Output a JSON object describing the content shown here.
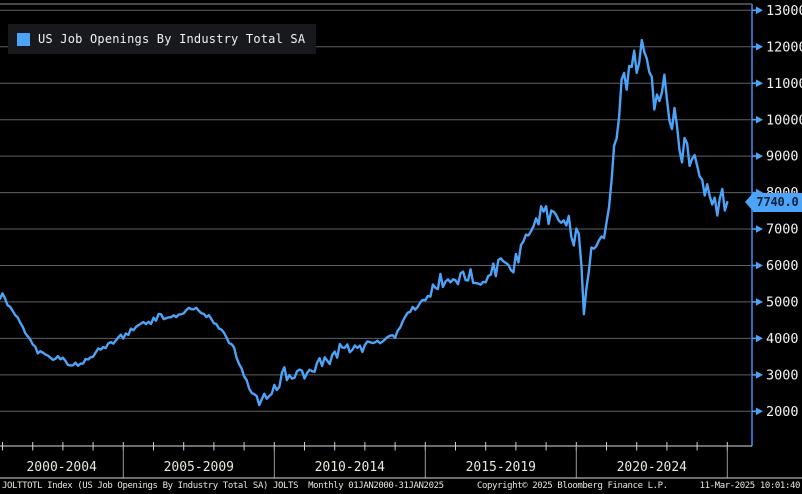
{
  "window": {
    "background": "#000000",
    "accent_blue": "#4da3f7",
    "axis_blue": "#2d6cc0",
    "grid_color": "#5d6166"
  },
  "legend": {
    "label": "US Job Openings By Industry Total SA",
    "swatch_color": "#4da3f7"
  },
  "last_value": {
    "text": "7740.0",
    "value": 7740.0,
    "bg": "#4da3f7",
    "text_color": "#0b1f38"
  },
  "y_axis": {
    "labels": [
      "13000",
      "12000",
      "11000",
      "10000",
      "9000",
      "8000",
      "7000",
      "6000",
      "5000",
      "4000",
      "3000",
      "2000"
    ],
    "tick_values": [
      13000,
      12000,
      11000,
      10000,
      9000,
      8000,
      7000,
      6000,
      5000,
      4000,
      3000,
      2000
    ],
    "label_color": "#f2f2f2"
  },
  "x_axis": {
    "sections": [
      "2000-2004",
      "2005-2009",
      "2010-2014",
      "2015-2019",
      "2020-2024"
    ],
    "divider_years": [
      2005,
      2010,
      2015,
      2020,
      2025
    ],
    "minor_tick_years_start": 2001,
    "minor_tick_years_end": 2025,
    "label_color": "#e8e8dc"
  },
  "footer": {
    "left": "JOLTTOTL Index (US Job Openings By Industry Total SA) JOLTS  Monthly 01JAN2000-31JAN2025",
    "center": "Copyright© 2025 Bloomberg Finance L.P.",
    "right": "11-Mar-2025 10:01:40"
  },
  "chart_data": {
    "type": "line",
    "title": "US Job Openings By Industry Total SA",
    "ticker": "JOLTTOTL Index",
    "frequency": "monthly",
    "x_start": "2000-12",
    "x_end": "2025-01",
    "ylim": [
      1100,
      13150
    ],
    "y_ticks": [
      2000,
      3000,
      4000,
      5000,
      6000,
      7000,
      8000,
      9000,
      10000,
      11000,
      12000,
      13000
    ],
    "x_section_labels": [
      "2000-2004",
      "2005-2009",
      "2010-2014",
      "2015-2019",
      "2020-2024"
    ],
    "legend_position": "top-left",
    "grid": true,
    "last_value": 7740.0,
    "series": [
      {
        "name": "US Job Openings By Industry Total SA",
        "color": "#4da3f7",
        "values": [
          5088,
          5234,
          5098,
          4909,
          4866,
          4756,
          4642,
          4576,
          4438,
          4321,
          4147,
          4058,
          3976,
          3832,
          3778,
          3588,
          3650,
          3610,
          3562,
          3528,
          3477,
          3409,
          3440,
          3515,
          3427,
          3467,
          3389,
          3269,
          3259,
          3261,
          3332,
          3249,
          3306,
          3311,
          3434,
          3422,
          3482,
          3499,
          3609,
          3723,
          3694,
          3760,
          3733,
          3858,
          3898,
          3858,
          3939,
          4026,
          4101,
          3998,
          4133,
          4097,
          4270,
          4224,
          4313,
          4362,
          4406,
          4447,
          4391,
          4456,
          4394,
          4565,
          4486,
          4672,
          4661,
          4529,
          4551,
          4575,
          4581,
          4634,
          4584,
          4652,
          4661,
          4687,
          4775,
          4838,
          4800,
          4797,
          4843,
          4756,
          4690,
          4669,
          4586,
          4636,
          4528,
          4414,
          4393,
          4268,
          4240,
          4153,
          4026,
          3874,
          3844,
          3750,
          3466,
          3296,
          3178,
          2955,
          2859,
          2620,
          2504,
          2469,
          2416,
          2170,
          2323,
          2480,
          2347,
          2419,
          2483,
          2725,
          2584,
          2676,
          3060,
          3206,
          2856,
          2992,
          2897,
          2920,
          3099,
          3143,
          3113,
          2900,
          3049,
          3139,
          3100,
          3086,
          3339,
          3453,
          3246,
          3481,
          3391,
          3296,
          3544,
          3637,
          3471,
          3844,
          3748,
          3743,
          3834,
          3620,
          3685,
          3804,
          3740,
          3800,
          3630,
          3824,
          3916,
          3897,
          3872,
          3889,
          3938,
          3868,
          3912,
          3975,
          4039,
          4073,
          4087,
          4015,
          4207,
          4300,
          4465,
          4599,
          4704,
          4726,
          4860,
          4790,
          4867,
          4990,
          5057,
          5049,
          5162,
          5146,
          5476,
          5387,
          5354,
          5770,
          5410,
          5557,
          5617,
          5535,
          5620,
          5594,
          5489,
          5782,
          5831,
          5597,
          5592,
          5894,
          5524,
          5519,
          5504,
          5475,
          5549,
          5539,
          5712,
          5746,
          6055,
          5705,
          6150,
          6193,
          6114,
          6068,
          6022,
          5874,
          5812,
          6313,
          6084,
          6560,
          6665,
          6847,
          6826,
          6939,
          7078,
          7293,
          7131,
          7626,
          7479,
          7625,
          7142,
          7505,
          7474,
          7384,
          7233,
          7170,
          7236,
          7100,
          7361,
          6787,
          6552,
          7012,
          6866,
          6011,
          4664,
          5371,
          5845,
          6492,
          6460,
          6538,
          6690,
          6796,
          6752,
          7174,
          7590,
          8341,
          9286,
          9483,
          10073,
          11098,
          11283,
          10823,
          11471,
          11448,
          11892,
          11283,
          11566,
          12182,
          11855,
          11671,
          11303,
          11170,
          10280,
          10687,
          10512,
          10746,
          11234,
          10563,
          9974,
          9745,
          10320,
          9824,
          9165,
          8827,
          9497,
          9350,
          8733,
          8925,
          9026,
          8748,
          8445,
          8355,
          7919,
          8230,
          7910,
          7673,
          7861,
          7372,
          7839,
          8098,
          7508,
          7740
        ]
      }
    ]
  }
}
